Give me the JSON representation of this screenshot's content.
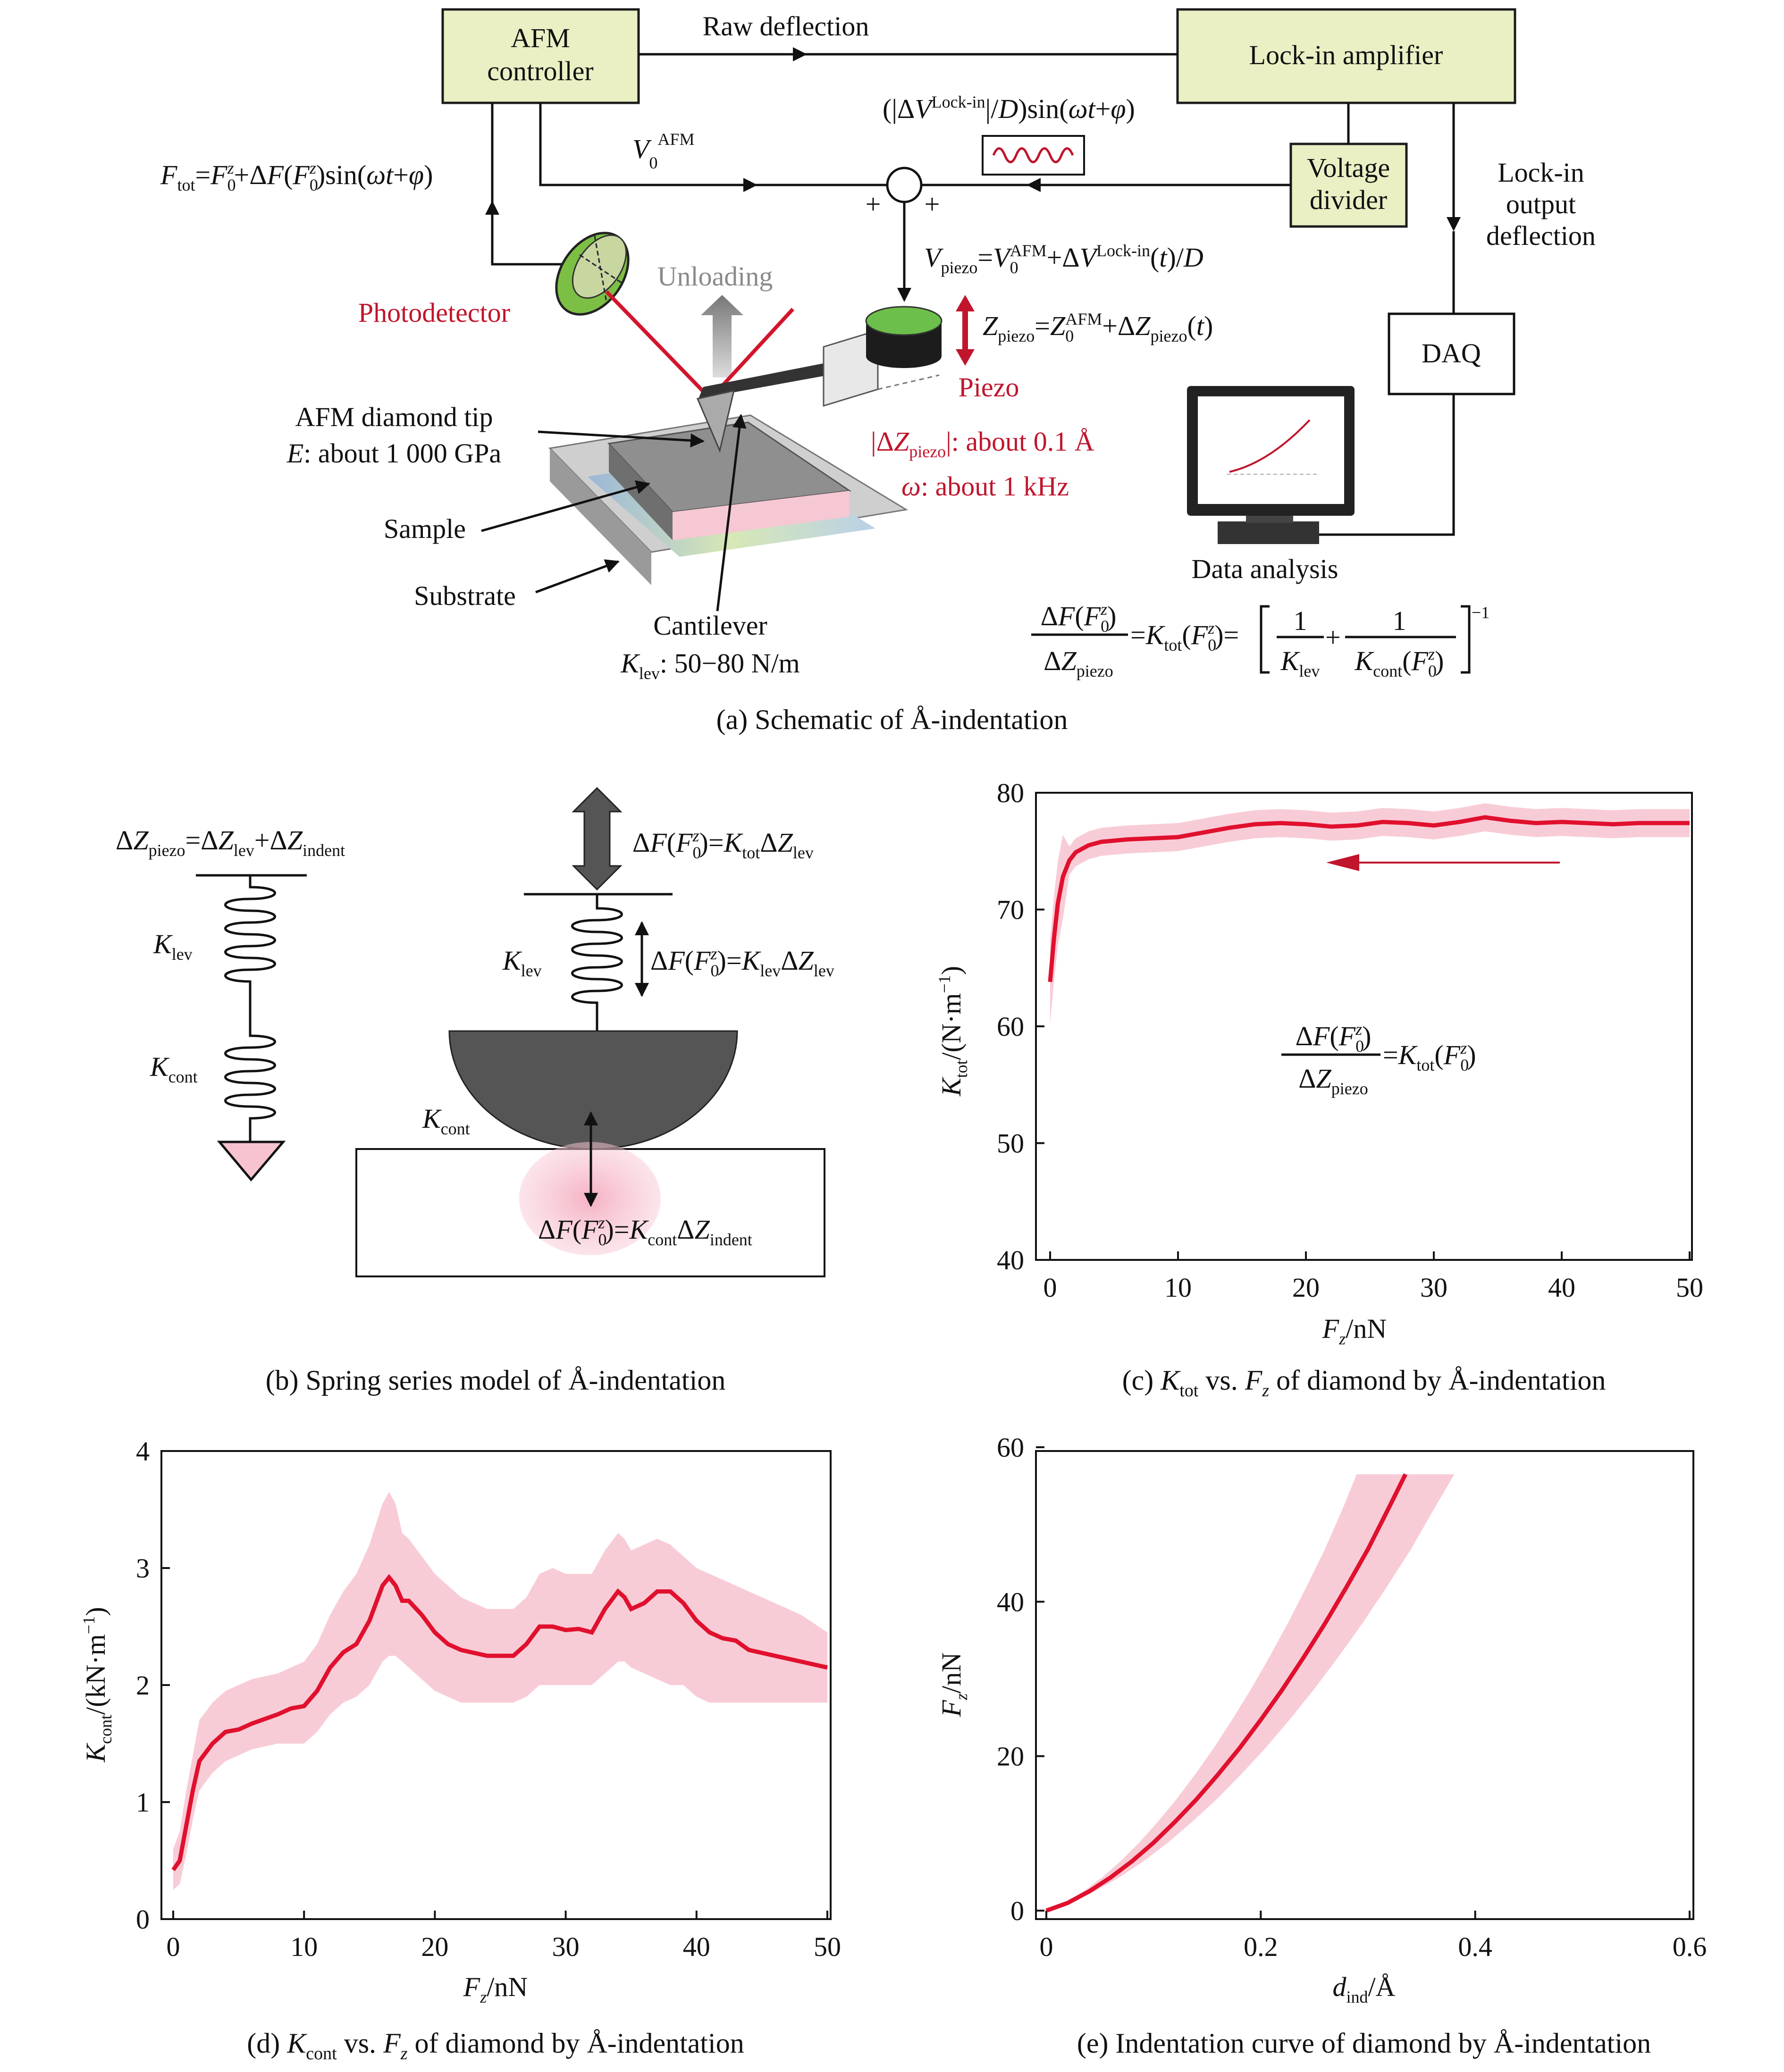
{
  "panel_a": {
    "caption": "(a) Schematic of Å-indentation",
    "afm_controller": [
      "AFM",
      "controller"
    ],
    "raw_deflection": "Raw deflection",
    "lock_in_amplifier": "Lock-in amplifier",
    "voltage_divider": [
      "Voltage",
      "divider"
    ],
    "lock_in_output": [
      "Lock-in",
      "output",
      "deflection"
    ],
    "daq": "DAQ",
    "data_analysis": "Data analysis",
    "photodetector": "Photodetector",
    "unloading": "Unloading",
    "piezo": "Piezo",
    "tip_label": "AFM diamond tip",
    "tip_modulus_prefix": "E",
    "tip_modulus_value": ": about 1 000 GPa",
    "sample": "Sample",
    "substrate": "Substrate",
    "cantilever": "Cantilever",
    "klev_value": ": 50−80 N/m",
    "dz_amplitude": ": about 0.1 Å",
    "omega_value": ": about 1 kHz",
    "plus_sign": "+"
  },
  "panel_b": {
    "caption": "(b) Spring series model of Å-indentation"
  },
  "panel_c": {
    "caption_prefix": "(c) ",
    "caption_suffix": " of diamond by Å-indentation",
    "caption_vs": " vs. ",
    "ylabel_unit": "/(N·m",
    "xlabel_unit": "/nN",
    "yticks": [
      "40",
      "50",
      "60",
      "70",
      "80"
    ],
    "xticks": [
      "0",
      "10",
      "20",
      "30",
      "40",
      "50"
    ]
  },
  "panel_d": {
    "caption_prefix": "(d) ",
    "caption_vs": " vs. ",
    "caption_suffix": " of diamond by Å-indentation",
    "ylabel_unit": "/(kN·m",
    "xlabel_unit": "/nN",
    "yticks": [
      "0",
      "1",
      "2",
      "3",
      "4"
    ],
    "xticks": [
      "0",
      "10",
      "20",
      "30",
      "40",
      "50"
    ]
  },
  "panel_e": {
    "caption": "(e) Indentation curve of diamond by Å-indentation",
    "xlabel_unit": "/Å",
    "ylabel_unit": "/nN",
    "yticks": [
      "0",
      "20",
      "40",
      "60"
    ],
    "xticks": [
      "0",
      "0.2",
      "0.4",
      "0.6"
    ]
  },
  "colors": {
    "curve": "#e0102e",
    "band": "#f7c3cf",
    "box_fill": "#eaf0c4",
    "red_label": "#c0152c"
  },
  "chart_data": [
    {
      "type": "line",
      "title": "(c) Ktot vs. Fz of diamond by Å-indentation",
      "xlabel": "Fz/nN",
      "ylabel": "Ktot/(N·m−1)",
      "xlim": [
        0,
        50
      ],
      "ylim": [
        40,
        80
      ],
      "series": [
        {
          "x": [
            0,
            0.3,
            0.6,
            1,
            1.5,
            2,
            3,
            4,
            5,
            6,
            8,
            10,
            12,
            14,
            16,
            18,
            20,
            22,
            24,
            26,
            28,
            30,
            32,
            34,
            36,
            38,
            40,
            42,
            44,
            46,
            48,
            50
          ],
          "y": [
            63.8,
            67.5,
            70.5,
            72.8,
            74.2,
            74.9,
            75.5,
            75.8,
            75.9,
            76.0,
            76.1,
            76.2,
            76.6,
            77.0,
            77.3,
            77.4,
            77.3,
            77.1,
            77.2,
            77.5,
            77.4,
            77.2,
            77.5,
            77.9,
            77.6,
            77.4,
            77.5,
            77.4,
            77.3,
            77.4,
            77.4,
            77.4
          ],
          "band": 1.2
        }
      ]
    },
    {
      "type": "line",
      "title": "(d) Kcont vs. Fz of diamond by Å-indentation",
      "xlabel": "Fz/nN",
      "ylabel": "Kcont/(kN·m−1)",
      "xlim": [
        0,
        50
      ],
      "ylim": [
        0,
        4
      ],
      "series": [
        {
          "x": [
            0,
            0.5,
            1,
            1.5,
            2,
            3,
            4,
            5,
            6,
            8,
            9,
            10,
            11,
            12,
            13,
            14,
            15,
            16,
            16.5,
            17,
            17.5,
            18,
            19,
            20,
            21,
            22,
            24,
            26,
            27,
            28,
            29,
            30,
            31,
            32,
            33,
            34,
            34.5,
            35,
            36,
            37,
            38,
            39,
            40,
            41,
            42,
            43,
            44,
            46,
            48,
            50
          ],
          "y": [
            0.42,
            0.5,
            0.8,
            1.1,
            1.35,
            1.5,
            1.6,
            1.62,
            1.67,
            1.75,
            1.8,
            1.82,
            1.95,
            2.15,
            2.28,
            2.35,
            2.55,
            2.85,
            2.92,
            2.85,
            2.72,
            2.72,
            2.6,
            2.45,
            2.35,
            2.3,
            2.25,
            2.25,
            2.35,
            2.5,
            2.5,
            2.47,
            2.48,
            2.45,
            2.65,
            2.8,
            2.75,
            2.65,
            2.7,
            2.8,
            2.8,
            2.7,
            2.55,
            2.45,
            2.4,
            2.38,
            2.3,
            2.25,
            2.2,
            2.15
          ],
          "band_lo": [
            0.25,
            0.3,
            0.55,
            0.85,
            1.1,
            1.25,
            1.35,
            1.4,
            1.45,
            1.5,
            1.5,
            1.5,
            1.6,
            1.75,
            1.85,
            1.9,
            2.0,
            2.2,
            2.25,
            2.25,
            2.2,
            2.15,
            2.05,
            1.95,
            1.9,
            1.85,
            1.85,
            1.85,
            1.9,
            2.0,
            2.0,
            2.0,
            2.0,
            2.0,
            2.1,
            2.2,
            2.2,
            2.15,
            2.1,
            2.05,
            2.0,
            2.0,
            1.9,
            1.85,
            1.85,
            1.85,
            1.85,
            1.85,
            1.85,
            1.85
          ],
          "band_hi": [
            0.6,
            0.75,
            1.1,
            1.4,
            1.7,
            1.85,
            1.95,
            2.0,
            2.05,
            2.1,
            2.15,
            2.2,
            2.35,
            2.6,
            2.8,
            2.95,
            3.2,
            3.55,
            3.65,
            3.55,
            3.3,
            3.25,
            3.1,
            2.95,
            2.85,
            2.75,
            2.65,
            2.65,
            2.75,
            2.95,
            3.0,
            2.95,
            2.95,
            2.95,
            3.15,
            3.3,
            3.25,
            3.15,
            3.2,
            3.25,
            3.2,
            3.1,
            3.0,
            2.95,
            2.9,
            2.85,
            2.8,
            2.7,
            2.6,
            2.45
          ]
        }
      ]
    },
    {
      "type": "line",
      "title": "(e) Indentation curve of diamond by Å-indentation",
      "xlabel": "dind/Å",
      "ylabel": "Fz/nN",
      "xlim": [
        0,
        0.6
      ],
      "ylim": [
        0,
        60
      ],
      "series": [
        {
          "x": [
            0,
            0.02,
            0.04,
            0.06,
            0.08,
            0.1,
            0.12,
            0.14,
            0.16,
            0.18,
            0.2,
            0.22,
            0.24,
            0.26,
            0.28,
            0.3,
            0.32,
            0.335
          ],
          "y": [
            0,
            1.0,
            2.5,
            4.3,
            6.4,
            8.8,
            11.5,
            14.4,
            17.6,
            21.0,
            24.7,
            28.6,
            32.8,
            37.2,
            41.9,
            46.8,
            52.3,
            56.5
          ],
          "band_x_offset": 0.035
        }
      ]
    }
  ]
}
